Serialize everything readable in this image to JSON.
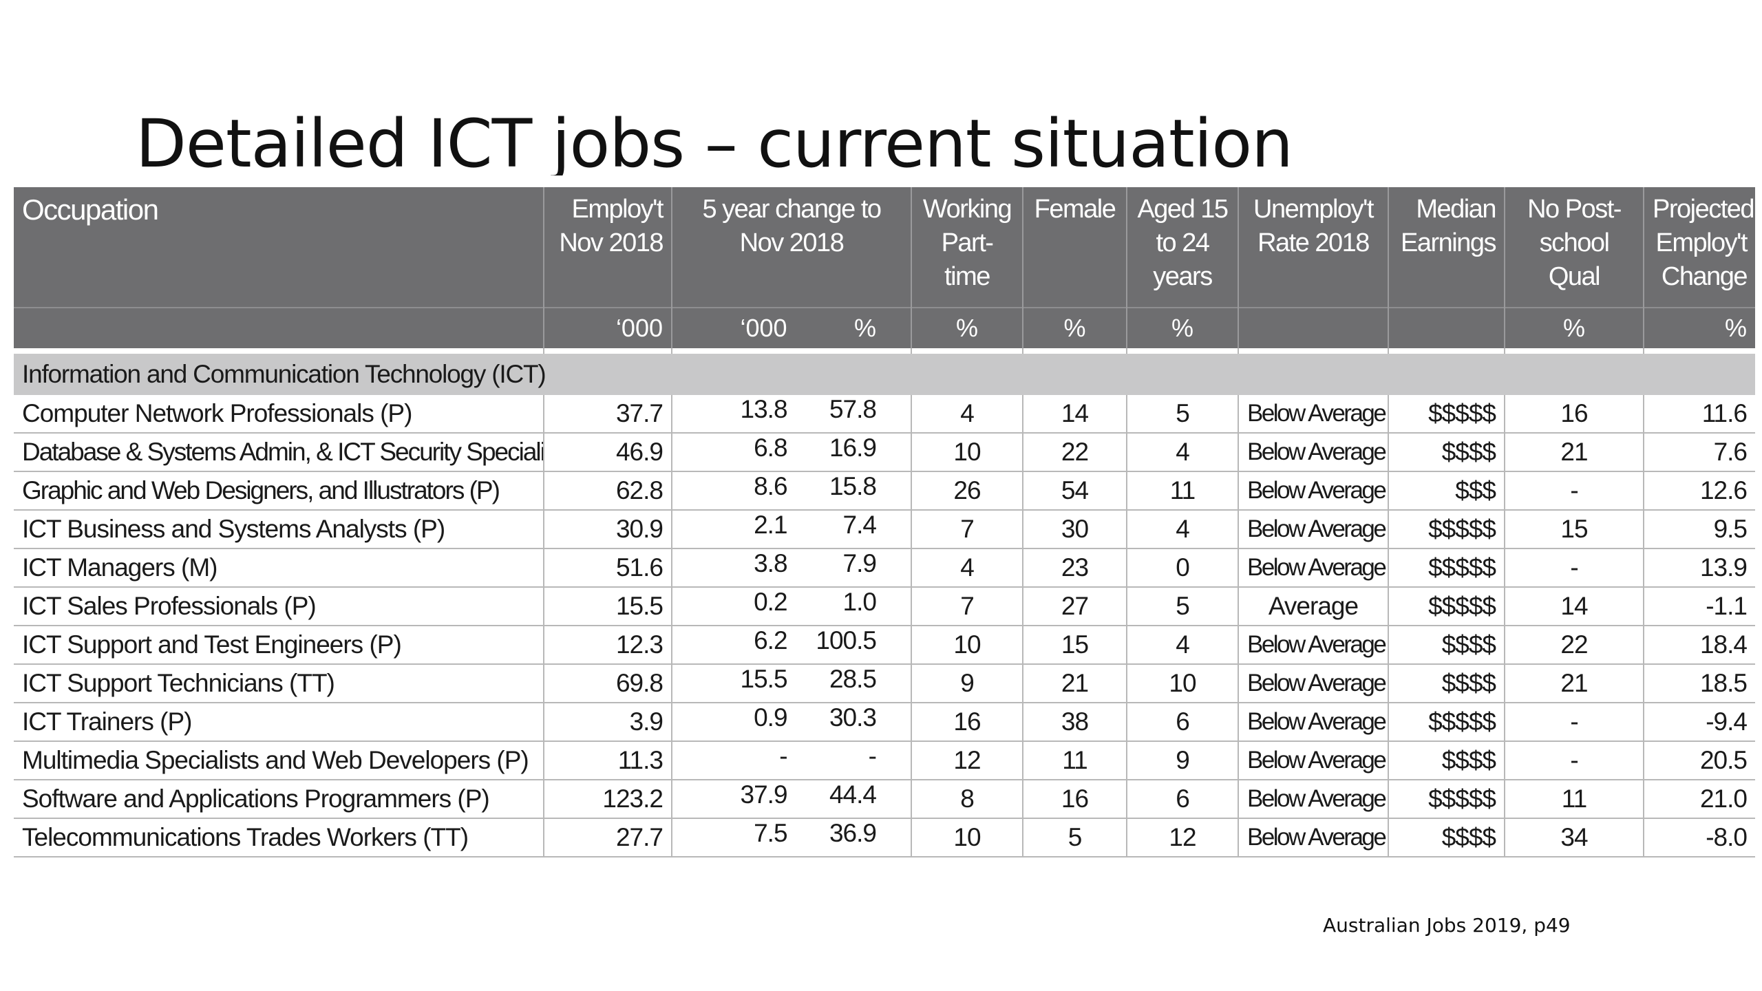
{
  "title": "Detailed ICT jobs – current situation",
  "source": "Australian Jobs 2019, p49",
  "table": {
    "headers": {
      "occupation": "Occupation",
      "employ": "Employ't Nov 2018",
      "change": "5 year change to Nov 2018",
      "working": "Working Part-time",
      "female": "Female",
      "aged": "Aged 15 to 24 years",
      "unemploy": "Unemploy't Rate 2018",
      "median": "Median Earnings",
      "nopost": "No Post-school Qual",
      "projected": "Projected Employ't Change"
    },
    "units": {
      "employ": "‘000",
      "change_num": "‘000",
      "change_pct": "%",
      "working": "%",
      "female": "%",
      "aged": "%",
      "unemploy": "",
      "median": "",
      "nopost": "%",
      "projected": "%"
    },
    "section": "Information and Communication Technology (ICT)",
    "rows": [
      {
        "occupation": "Computer Network Professionals (P)",
        "employ": "37.7",
        "change_num": "13.8",
        "change_pct": "57.8",
        "working": "4",
        "female": "14",
        "aged": "5",
        "unemploy": "Below Average",
        "median": "$$$$$",
        "nopost": "16",
        "projected": "11.6"
      },
      {
        "occupation": "Database & Systems Admin, & ICT Security Specialists (P)",
        "employ": "46.9",
        "change_num": "6.8",
        "change_pct": "16.9",
        "working": "10",
        "female": "22",
        "aged": "4",
        "unemploy": "Below Average",
        "median": "$$$$",
        "nopost": "21",
        "projected": "7.6"
      },
      {
        "occupation": "Graphic and Web Designers, and Illustrators (P)",
        "employ": "62.8",
        "change_num": "8.6",
        "change_pct": "15.8",
        "working": "26",
        "female": "54",
        "aged": "11",
        "unemploy": "Below Average",
        "median": "$$$",
        "nopost": "-",
        "projected": "12.6"
      },
      {
        "occupation": "ICT Business and Systems Analysts (P)",
        "employ": "30.9",
        "change_num": "2.1",
        "change_pct": "7.4",
        "working": "7",
        "female": "30",
        "aged": "4",
        "unemploy": "Below Average",
        "median": "$$$$$",
        "nopost": "15",
        "projected": "9.5"
      },
      {
        "occupation": "ICT Managers (M)",
        "employ": "51.6",
        "change_num": "3.8",
        "change_pct": "7.9",
        "working": "4",
        "female": "23",
        "aged": "0",
        "unemploy": "Below Average",
        "median": "$$$$$",
        "nopost": "-",
        "projected": "13.9"
      },
      {
        "occupation": "ICT Sales Professionals (P)",
        "employ": "15.5",
        "change_num": "0.2",
        "change_pct": "1.0",
        "working": "7",
        "female": "27",
        "aged": "5",
        "unemploy": "Average",
        "median": "$$$$$",
        "nopost": "14",
        "projected": "-1.1"
      },
      {
        "occupation": "ICT Support and Test Engineers (P)",
        "employ": "12.3",
        "change_num": "6.2",
        "change_pct": "100.5",
        "working": "10",
        "female": "15",
        "aged": "4",
        "unemploy": "Below Average",
        "median": "$$$$",
        "nopost": "22",
        "projected": "18.4"
      },
      {
        "occupation": "ICT Support Technicians (TT)",
        "employ": "69.8",
        "change_num": "15.5",
        "change_pct": "28.5",
        "working": "9",
        "female": "21",
        "aged": "10",
        "unemploy": "Below Average",
        "median": "$$$$",
        "nopost": "21",
        "projected": "18.5"
      },
      {
        "occupation": "ICT Trainers (P)",
        "employ": "3.9",
        "change_num": "0.9",
        "change_pct": "30.3",
        "working": "16",
        "female": "38",
        "aged": "6",
        "unemploy": "Below Average",
        "median": "$$$$$",
        "nopost": "-",
        "projected": "-9.4"
      },
      {
        "occupation": "Multimedia Specialists and Web Developers (P)",
        "employ": "11.3",
        "change_num": "-",
        "change_pct": "-",
        "working": "12",
        "female": "11",
        "aged": "9",
        "unemploy": "Below Average",
        "median": "$$$$",
        "nopost": "-",
        "projected": "20.5"
      },
      {
        "occupation": "Software and Applications Programmers (P)",
        "employ": "123.2",
        "change_num": "37.9",
        "change_pct": "44.4",
        "working": "8",
        "female": "16",
        "aged": "6",
        "unemploy": "Below Average",
        "median": "$$$$$",
        "nopost": "11",
        "projected": "21.0"
      },
      {
        "occupation": "Telecommunications Trades Workers (TT)",
        "employ": "27.7",
        "change_num": "7.5",
        "change_pct": "36.9",
        "working": "10",
        "female": "5",
        "aged": "12",
        "unemploy": "Below Average",
        "median": "$$$$",
        "nopost": "34",
        "projected": "-8.0"
      }
    ]
  },
  "colors": {
    "header_bg": "#6e6e70",
    "section_bg": "#c8c8c9",
    "grid": "#b8b8b8"
  }
}
